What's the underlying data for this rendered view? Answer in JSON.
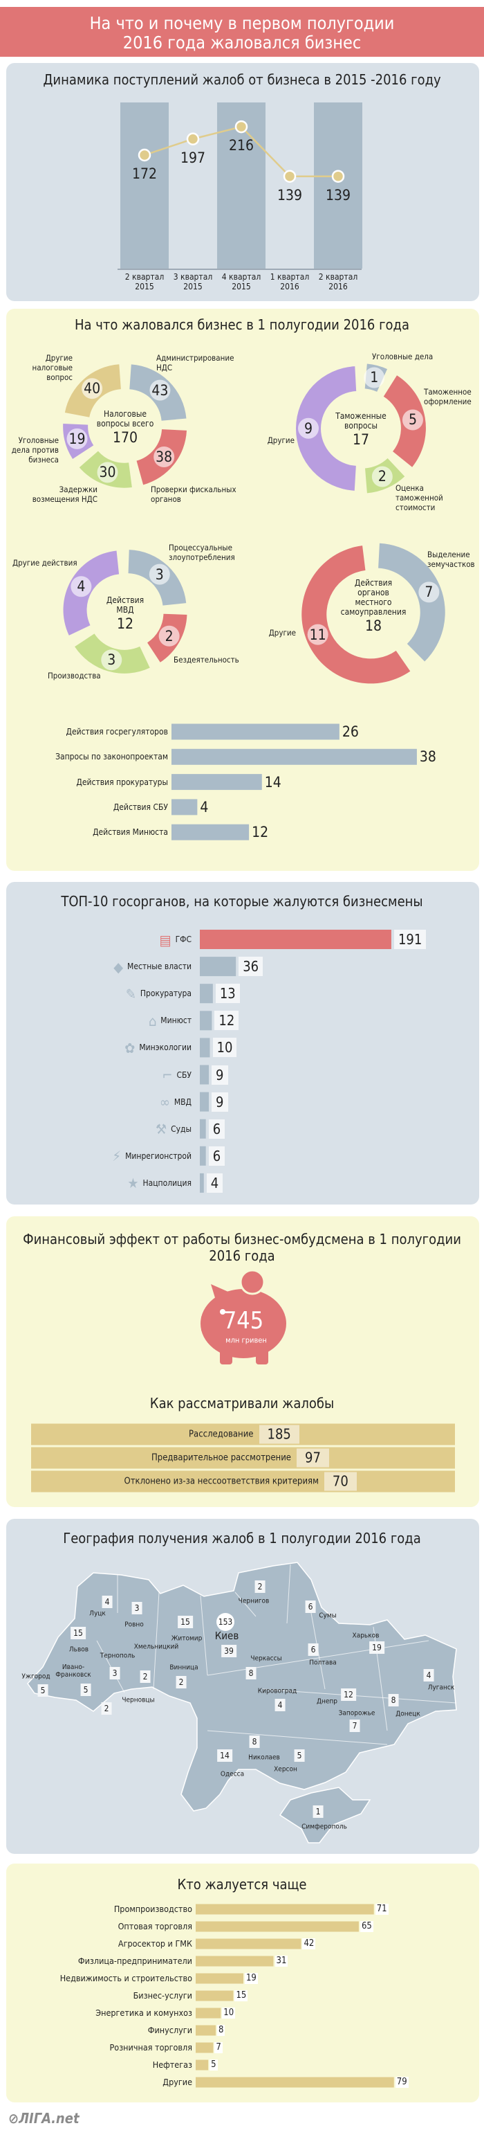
{
  "header": {
    "title_line1": "На что и почему в первом полугодии",
    "title_line2": "2016 года жаловался бизнес"
  },
  "colors": {
    "red": "#e07575",
    "blue": "#aabbc8",
    "green": "#c5de8c",
    "purple": "#b89ddf",
    "yellow": "#e0cc8c",
    "panel_blue": "#d9e1e8",
    "panel_yellow": "#f8f8d6"
  },
  "chart_data": [
    {
      "type": "line",
      "title": "Динамика поступлений жалоб от бизнеса в 2015 -2016 году",
      "categories": [
        "2 квартал\n2015",
        "3 квартал\n2015",
        "4 квартал\n2015",
        "1 квартал\n2016",
        "2 квартал\n2016"
      ],
      "values": [
        172,
        197,
        216,
        139,
        139
      ],
      "grid": false
    },
    {
      "type": "pie",
      "section_title": "На что жаловался бизнес в 1 полугодии 2016 года",
      "center_label": "Налоговые\nвопросы всего",
      "total": 170,
      "slices": [
        {
          "label": "Администрирование\nНДС",
          "value": 43,
          "color": "#aabbc8"
        },
        {
          "label": "Проверки фискальных\nорганов",
          "value": 38,
          "color": "#e07575"
        },
        {
          "label": "Задержки\nвозмещения НДС",
          "value": 30,
          "color": "#c5de8c"
        },
        {
          "label": "Уголовные\nдела против\nбизнеса",
          "value": 19,
          "color": "#b89ddf"
        },
        {
          "label": "Другие\nналоговые\nвопрос",
          "value": 40,
          "color": "#e0cc8c"
        }
      ]
    },
    {
      "type": "pie",
      "center_label": "Таможенные\nвопросы",
      "total": 17,
      "slices": [
        {
          "label": "Уголовные дела",
          "value": 1,
          "color": "#aabbc8"
        },
        {
          "label": "Таможенное\nоформление",
          "value": 5,
          "color": "#e07575"
        },
        {
          "label": "Оценка\nтаможенной\nстоимости",
          "value": 2,
          "color": "#c5de8c"
        },
        {
          "label": "Другие",
          "value": 9,
          "color": "#b89ddf"
        }
      ]
    },
    {
      "type": "pie",
      "center_label": "Действия\nМВД",
      "total": 12,
      "slices": [
        {
          "label": "Процессуальные\nзлоупотребления",
          "value": 3,
          "color": "#aabbc8"
        },
        {
          "label": "Бездеятельность",
          "value": 2,
          "color": "#e07575"
        },
        {
          "label": "Производства",
          "value": 3,
          "color": "#c5de8c"
        },
        {
          "label": "Другие действия",
          "value": 4,
          "color": "#b89ddf"
        }
      ]
    },
    {
      "type": "pie",
      "center_label": "Действия\nорганов\nместного\nсамоуправления",
      "total": 18,
      "slices": [
        {
          "label": "Выделение\nземучастков",
          "value": 7,
          "color": "#aabbc8"
        },
        {
          "label": "Другие",
          "value": 11,
          "color": "#e07575"
        }
      ]
    },
    {
      "type": "bar",
      "orientation": "horizontal",
      "categories": [
        "Действия госрегуляторов",
        "Запросы по законопроектам",
        "Действия прокуратуры",
        "Действия СБУ",
        "Действия Минюста"
      ],
      "values": [
        26,
        38,
        14,
        4,
        12
      ],
      "color": "#aabbc8"
    },
    {
      "type": "bar",
      "orientation": "horizontal",
      "title": "ТОП-10 госорганов, на которые жалуются бизнесмены",
      "categories": [
        "ГФС",
        "Местные власти",
        "Прокуратура",
        "Минюст",
        "Минэкологии",
        "СБУ",
        "МВД",
        "Суды",
        "Минрегионстрой",
        "Нацполиция"
      ],
      "values": [
        191,
        36,
        13,
        12,
        10,
        9,
        9,
        6,
        6,
        4
      ],
      "icons": [
        "money-icon",
        "ukraine-map-icon",
        "document-icon",
        "building-icon",
        "leaf-icon",
        "pistol-icon",
        "handcuffs-icon",
        "gavel-icon",
        "lightning-icon",
        "badge-icon"
      ],
      "highlight_color": "#e07575",
      "color": "#aabbc8"
    },
    {
      "type": "bar",
      "orientation": "horizontal",
      "title": "Как рассматривали жалобы",
      "categories": [
        "Расследование",
        "Предварительное рассмотрение",
        "Отклонено из-за нессоответствия критериям"
      ],
      "values": [
        185,
        97,
        70
      ],
      "color": "#e0cc8c"
    },
    {
      "type": "bar",
      "orientation": "horizontal",
      "title": "Кто жалуется чаще",
      "categories": [
        "Промпроизводство",
        "Оптовая торговля",
        "Агросектор и ГМК",
        "Физлица-предприниматели",
        "Недвижимость и строительство",
        "Бизнес-услуги",
        "Энергетика и комунхоз",
        "Финуслуги",
        "Розничная торговля",
        "Нефтегаз",
        "Другие"
      ],
      "values": [
        71,
        65,
        42,
        31,
        19,
        15,
        10,
        8,
        7,
        5,
        79
      ],
      "color": "#e0cc8c"
    }
  ],
  "finance": {
    "title": "Финансовый эффект от работы бизнес-омбудсмена в 1 полугодии\n2016 года",
    "amount": "745",
    "unit": "млн гривен"
  },
  "map": {
    "title": "География получения жалоб в 1 полугодии 2016 года",
    "regions": [
      {
        "city": "Чернигов",
        "count": 2
      },
      {
        "city": "Сумы",
        "count": 6
      },
      {
        "city": "Луцк",
        "count": 4
      },
      {
        "city": "Ровно",
        "count": 3
      },
      {
        "city": "Житомир",
        "count": 15
      },
      {
        "city": "Киев",
        "count": 153
      },
      {
        "city": "",
        "count": 39
      },
      {
        "city": "Львов",
        "count": 15
      },
      {
        "city": "Харьков",
        "count": 19
      },
      {
        "city": "Полтава",
        "count": 6
      },
      {
        "city": "Черкассы",
        "count": 8
      },
      {
        "city": "Тернополь",
        "count": 3
      },
      {
        "city": "Хмельницкий",
        "count": 2
      },
      {
        "city": "Винница",
        "count": 2
      },
      {
        "city": "Ивано-\nФранковск",
        "count": 5
      },
      {
        "city": "Ужгород",
        "count": 5
      },
      {
        "city": "Луганск",
        "count": 4
      },
      {
        "city": "Кировоград",
        "count": 4
      },
      {
        "city": "Днепр",
        "count": 12
      },
      {
        "city": "Донецк",
        "count": 8
      },
      {
        "city": "Черновцы",
        "count": 2
      },
      {
        "city": "Запорожье",
        "count": 7
      },
      {
        "city": "Николаев",
        "count": 8
      },
      {
        "city": "Одесса",
        "count": 14
      },
      {
        "city": "Херсон",
        "count": 5
      },
      {
        "city": "Симферополь",
        "count": 1
      }
    ]
  },
  "footer": {
    "logo_text": "ЛIГА.net"
  }
}
